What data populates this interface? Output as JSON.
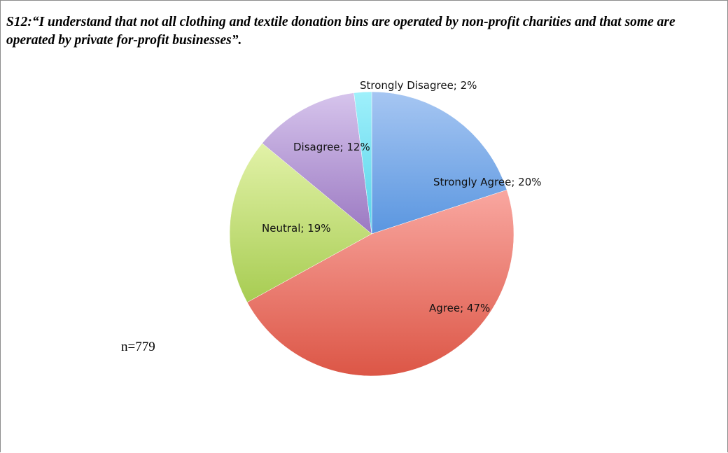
{
  "chart_data": {
    "type": "pie",
    "title": "S12:“I understand that not all clothing and textile donation bins are operated by  non-profit charities and that some are operated by private for-profit businesses”.",
    "note": "n=779",
    "slices": [
      {
        "label": "Strongly Agree",
        "value": 20,
        "display": "Strongly Agree; 20%",
        "color_light": "#a6c6f2",
        "color_dark": "#5a96e0"
      },
      {
        "label": "Agree",
        "value": 47,
        "display": "Agree; 47%",
        "color_light": "#f9a7a0",
        "color_dark": "#dc5646"
      },
      {
        "label": "Neutral",
        "value": 19,
        "display": "Neutral; 19%",
        "color_light": "#e2f2a8",
        "color_dark": "#a7cc52"
      },
      {
        "label": "Disagree",
        "value": 12,
        "display": "Disagree; 12%",
        "color_light": "#d6c4ec",
        "color_dark": "#9b79c2"
      },
      {
        "label": "Strongly Disagree",
        "value": 2,
        "display": "Strongly Disagree; 2%",
        "color_light": "#9ff0fb",
        "color_dark": "#55d2e9"
      }
    ]
  }
}
